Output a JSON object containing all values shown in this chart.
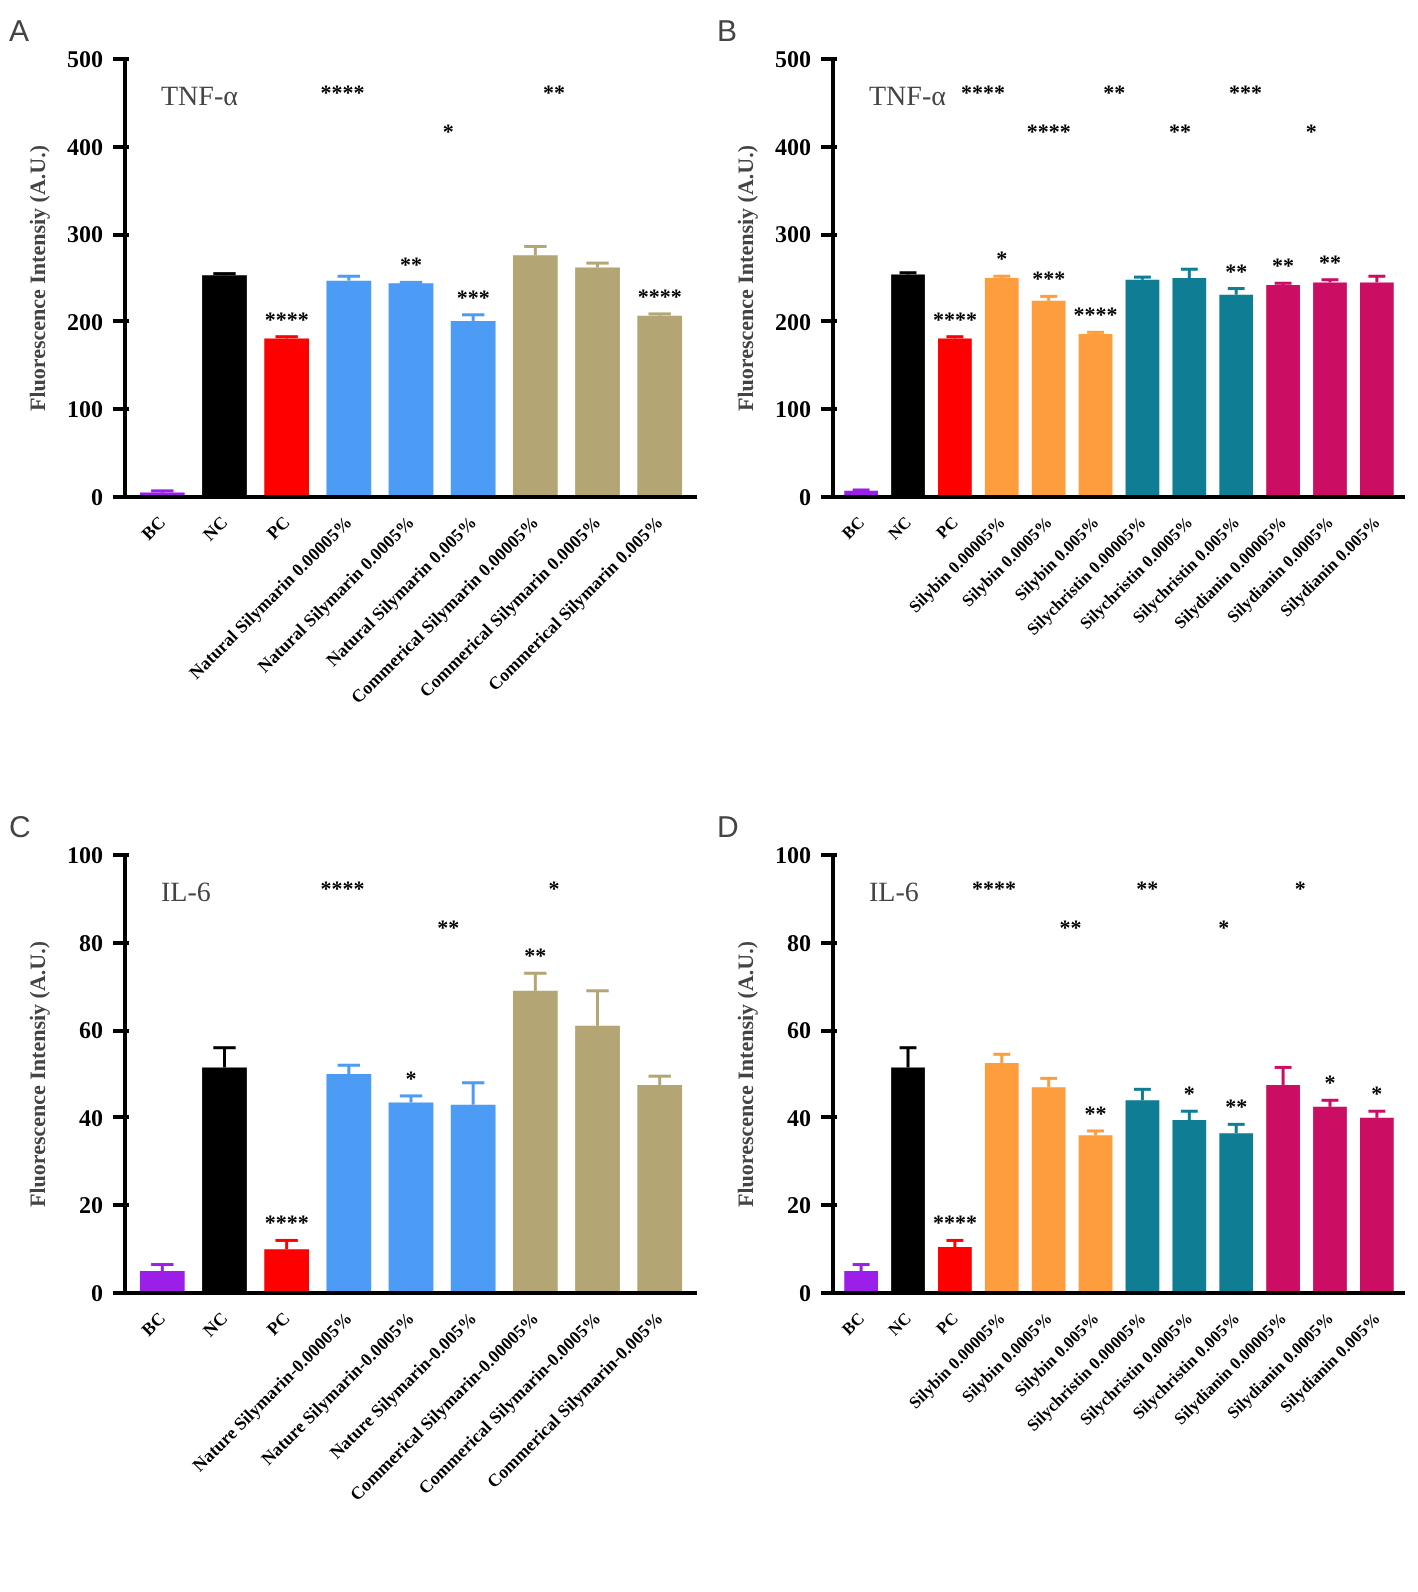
{
  "chart_data": [
    {
      "type": "bar",
      "title": "TNF-α",
      "subtitle": "A",
      "ylabel": "Fluorescence Intensiy (A.U.)",
      "categories": [
        "BC",
        "NC",
        "PC",
        "Natural Silymarin 0.00005%",
        "Natural Silymarin 0.0005%",
        "Natural Silymarin 0.005%",
        "Commerical Silymarin 0.00005%",
        "Commerical Silymarin 0.0005%",
        "Commerical Silymarin 0.005%"
      ],
      "values": [
        5,
        253,
        181,
        247,
        244,
        201,
        276,
        262,
        207
      ],
      "errors": [
        2,
        2,
        2,
        5,
        1,
        7,
        10,
        5,
        2
      ],
      "value_labels": [
        null,
        null,
        "****",
        null,
        "**",
        "***",
        null,
        null,
        "****"
      ],
      "colors": [
        "#9b1fe8",
        "#000000",
        "#ff0000",
        "#4c9bf5",
        "#4c9bf5",
        "#4c9bf5",
        "#b3a574",
        "#b3a574",
        "#b3a574"
      ],
      "ylim": [
        0,
        500
      ],
      "yticks": [
        0,
        100,
        200,
        300,
        400,
        500
      ],
      "annotations": [
        "****",
        "*",
        "**"
      ]
    },
    {
      "type": "bar",
      "title": "TNF-α",
      "subtitle": "B",
      "ylabel": "Fluorescence Intensiy (A.U.)",
      "categories": [
        "BC",
        "NC",
        "PC",
        "Silybin 0.00005%",
        "Silybin 0.0005%",
        "Silybin 0.005%",
        "Silychristin 0.00005%",
        "Silychristin 0.0005%",
        "Silychristin 0.005%",
        "Silydianin 0.00005%",
        "Silydianin 0.0005%",
        "Silydianin 0.005%"
      ],
      "values": [
        7,
        254,
        181,
        250,
        224,
        186,
        248,
        250,
        231,
        242,
        245,
        245
      ],
      "errors": [
        1,
        2,
        2,
        2,
        5,
        2,
        3,
        10,
        7,
        2,
        3,
        7
      ],
      "value_labels": [
        null,
        null,
        "****",
        "*",
        "***",
        "****",
        null,
        null,
        "**",
        "**",
        "**",
        null
      ],
      "colors": [
        "#9b1fe8",
        "#000000",
        "#ff0000",
        "#fe9d3d",
        "#fe9d3d",
        "#fe9d3d",
        "#0f7e95",
        "#0f7e95",
        "#0f7e95",
        "#cc0d64",
        "#cc0d64",
        "#cc0d64"
      ],
      "ylim": [
        0,
        500
      ],
      "yticks": [
        0,
        100,
        200,
        300,
        400,
        500
      ],
      "annotations": [
        "****",
        "****",
        "**",
        "**",
        "***",
        "*"
      ]
    },
    {
      "type": "bar",
      "title": "IL-6",
      "subtitle": "C",
      "ylabel": "Fluorescence Intensiy (A.U.)",
      "categories": [
        "BC",
        "NC",
        "PC",
        "Nature Silymarin-0.00005%",
        "Nature Silymarin-0.0005%",
        "Nature Silymarin-0.005%",
        "Commerical Silymarin-0.00005%",
        "Commerical Silymarin-0.0005%",
        "Commerical Silymarin-0.005%"
      ],
      "values": [
        5,
        51.5,
        10,
        50,
        43.5,
        43,
        69,
        61,
        47.5
      ],
      "errors": [
        1.5,
        4.5,
        2,
        2,
        1.5,
        5,
        4,
        8,
        2
      ],
      "value_labels": [
        null,
        null,
        "****",
        null,
        "*",
        null,
        "**",
        null,
        null
      ],
      "colors": [
        "#9b1fe8",
        "#000000",
        "#ff0000",
        "#4c9bf5",
        "#4c9bf5",
        "#4c9bf5",
        "#b3a574",
        "#b3a574",
        "#b3a574"
      ],
      "ylim": [
        0,
        100
      ],
      "yticks": [
        0,
        20,
        40,
        60,
        80,
        100
      ],
      "annotations": [
        "****",
        "**",
        "*"
      ]
    },
    {
      "type": "bar",
      "title": "IL-6",
      "subtitle": "D",
      "ylabel": "Fluorescence Intensiy (A.U.)",
      "categories": [
        "BC",
        "NC",
        "PC",
        "Silybin 0.00005%",
        "Silybin 0.0005%",
        "Silybin 0.005%",
        "Silychristin 0.00005%",
        "Silychristin 0.0005%",
        "Silychristin 0.005%",
        "Silydianin 0.00005%",
        "Silydianin 0.0005%",
        "Silydianin 0.005%"
      ],
      "values": [
        5,
        51.5,
        10.5,
        52.5,
        47,
        36,
        44,
        39.5,
        36.5,
        47.5,
        42.5,
        40
      ],
      "errors": [
        1.5,
        4.5,
        1.5,
        2,
        2,
        1,
        2.5,
        2,
        2,
        4,
        1.5,
        1.5
      ],
      "value_labels": [
        null,
        null,
        "****",
        null,
        null,
        "**",
        null,
        "*",
        "**",
        null,
        "*",
        "*"
      ],
      "colors": [
        "#9b1fe8",
        "#000000",
        "#ff0000",
        "#fe9d3d",
        "#fe9d3d",
        "#fe9d3d",
        "#0f7e95",
        "#0f7e95",
        "#0f7e95",
        "#cc0d64",
        "#cc0d64",
        "#cc0d64"
      ],
      "ylim": [
        0,
        100
      ],
      "yticks": [
        0,
        20,
        40,
        60,
        80,
        100
      ],
      "annotations": [
        "****",
        "**",
        "**",
        "*",
        "*"
      ]
    }
  ]
}
